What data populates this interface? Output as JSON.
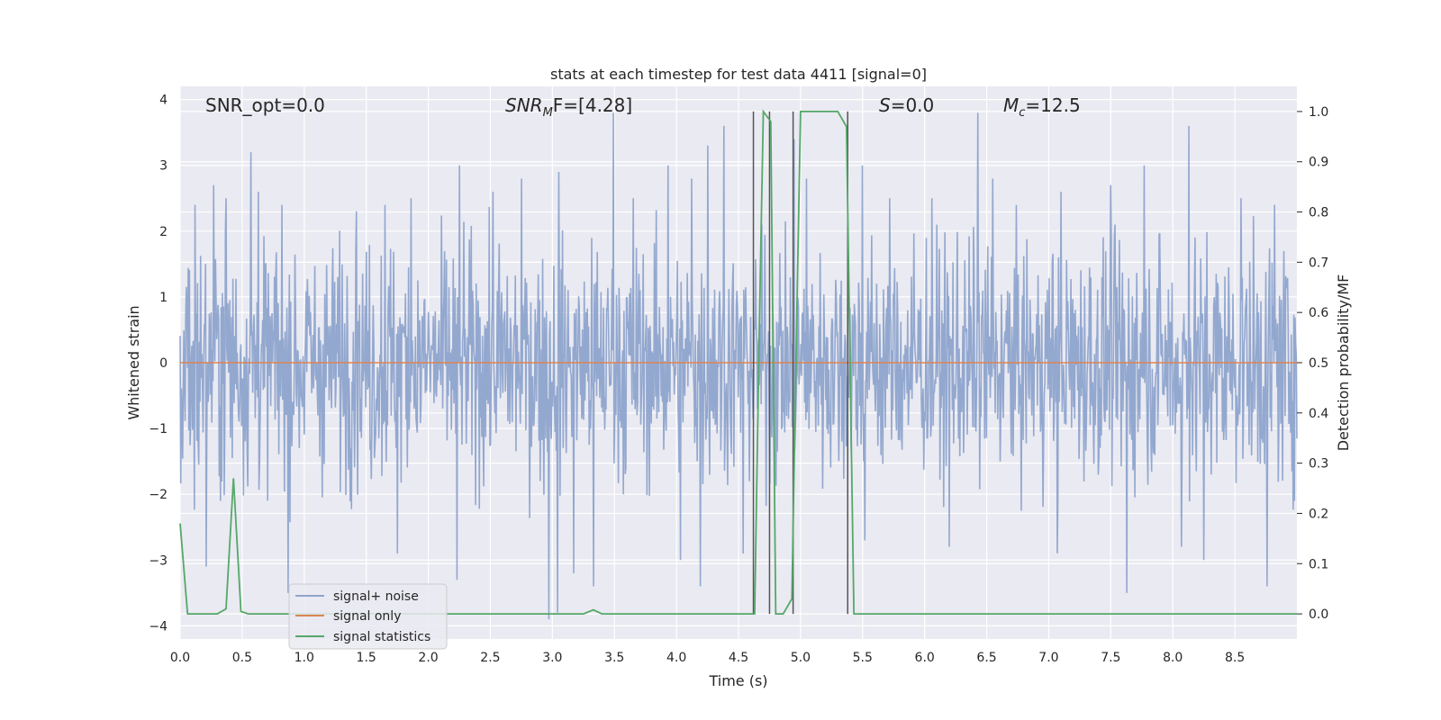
{
  "chart_data": {
    "type": "line",
    "title": "stats at each timestep for test data 4411 [signal=0]",
    "xlabel": "Time (s)",
    "ylabel_left": "Whitened strain",
    "ylabel_right": "Detection probability/MF",
    "xlim": [
      0.0,
      9.0
    ],
    "ylim_left": [
      -4.2,
      4.2
    ],
    "ylim_right": [
      -0.05,
      1.05
    ],
    "x_ticks": [
      "0.0",
      "0.5",
      "1.0",
      "1.5",
      "2.0",
      "2.5",
      "3.0",
      "3.5",
      "4.0",
      "4.5",
      "5.0",
      "5.5",
      "6.0",
      "6.5",
      "7.0",
      "7.5",
      "8.0",
      "8.5"
    ],
    "y_left_ticks": [
      "4",
      "3",
      "2",
      "1",
      "0",
      "−1",
      "−2",
      "−3",
      "−4"
    ],
    "y_right_ticks": [
      "1.0",
      "0.9",
      "0.8",
      "0.7",
      "0.6",
      "0.5",
      "0.4",
      "0.3",
      "0.2",
      "0.1",
      "0.0"
    ],
    "grid": true,
    "legend_position": "lower-left",
    "annotations": {
      "snr_opt": "SNR_opt=0.0",
      "snr_mf_main": "SNR",
      "snr_mf_sub": "M",
      "snr_mf_rest": "F=[4.28]",
      "s_label": "S",
      "s_rest": "=0.0",
      "mc_main": "M",
      "mc_sub": "c",
      "mc_rest": "=12.5"
    },
    "series": [
      {
        "name": "signal+ noise",
        "color": "#8ea4cc",
        "axis": "left",
        "noise_std": 0.9,
        "spikes": [
          [
            0.12,
            2.4
          ],
          [
            0.27,
            2.7
          ],
          [
            0.37,
            2.5
          ],
          [
            0.57,
            3.2
          ],
          [
            0.63,
            2.6
          ],
          [
            0.82,
            2.4
          ],
          [
            1.42,
            2.3
          ],
          [
            1.65,
            2.4
          ],
          [
            1.86,
            2.5
          ],
          [
            2.25,
            3.0
          ],
          [
            2.52,
            2.6
          ],
          [
            2.75,
            2.8
          ],
          [
            3.05,
            2.9
          ],
          [
            3.49,
            3.8
          ],
          [
            3.65,
            2.5
          ],
          [
            3.93,
            3.0
          ],
          [
            4.12,
            2.8
          ],
          [
            4.25,
            3.3
          ],
          [
            4.38,
            3.6
          ],
          [
            4.95,
            3.4
          ],
          [
            5.05,
            2.8
          ],
          [
            5.5,
            3.0
          ],
          [
            5.72,
            2.5
          ],
          [
            6.06,
            2.5
          ],
          [
            6.43,
            3.8
          ],
          [
            6.55,
            2.8
          ],
          [
            7.1,
            2.6
          ],
          [
            7.5,
            2.7
          ],
          [
            7.77,
            3.0
          ],
          [
            8.13,
            3.6
          ],
          [
            8.55,
            2.5
          ],
          [
            8.82,
            2.4
          ],
          [
            0.21,
            -3.1
          ],
          [
            0.87,
            -3.5
          ],
          [
            1.75,
            -2.9
          ],
          [
            2.23,
            -3.3
          ],
          [
            2.97,
            -3.9
          ],
          [
            3.04,
            -3.8
          ],
          [
            3.17,
            -3.2
          ],
          [
            3.33,
            -3.4
          ],
          [
            4.03,
            -3.0
          ],
          [
            4.19,
            -3.4
          ],
          [
            4.54,
            -2.9
          ],
          [
            5.52,
            -2.7
          ],
          [
            6.2,
            -2.8
          ],
          [
            7.07,
            -2.9
          ],
          [
            7.63,
            -3.5
          ],
          [
            8.07,
            -2.8
          ],
          [
            8.25,
            -3.0
          ],
          [
            8.76,
            -3.4
          ]
        ]
      },
      {
        "name": "signal only",
        "color": "#dd8452",
        "axis": "left",
        "points": [
          [
            0.0,
            0.0
          ],
          [
            9.0,
            0.0
          ]
        ]
      },
      {
        "name": "signal statistics",
        "color": "#55a868",
        "axis": "right",
        "points": [
          [
            0.0,
            0.18
          ],
          [
            0.06,
            0.0
          ],
          [
            0.12,
            0.0
          ],
          [
            0.3,
            0.0
          ],
          [
            0.37,
            0.01
          ],
          [
            0.43,
            0.27
          ],
          [
            0.49,
            0.005
          ],
          [
            0.55,
            0.0
          ],
          [
            3.25,
            0.0
          ],
          [
            3.33,
            0.008
          ],
          [
            3.4,
            0.0
          ],
          [
            3.6,
            0.0
          ],
          [
            4.6,
            0.0
          ],
          [
            4.63,
            0.0
          ],
          [
            4.67,
            0.6
          ],
          [
            4.7,
            1.0
          ],
          [
            4.73,
            0.99
          ],
          [
            4.76,
            0.98
          ],
          [
            4.8,
            0.0
          ],
          [
            4.86,
            0.0
          ],
          [
            4.93,
            0.03
          ],
          [
            4.97,
            0.6
          ],
          [
            5.0,
            1.0
          ],
          [
            5.3,
            1.0
          ],
          [
            5.37,
            0.97
          ],
          [
            5.43,
            0.0
          ],
          [
            9.0,
            0.0
          ]
        ]
      }
    ],
    "vertical_lines": [
      4.62,
      4.75,
      4.94,
      5.38
    ]
  }
}
